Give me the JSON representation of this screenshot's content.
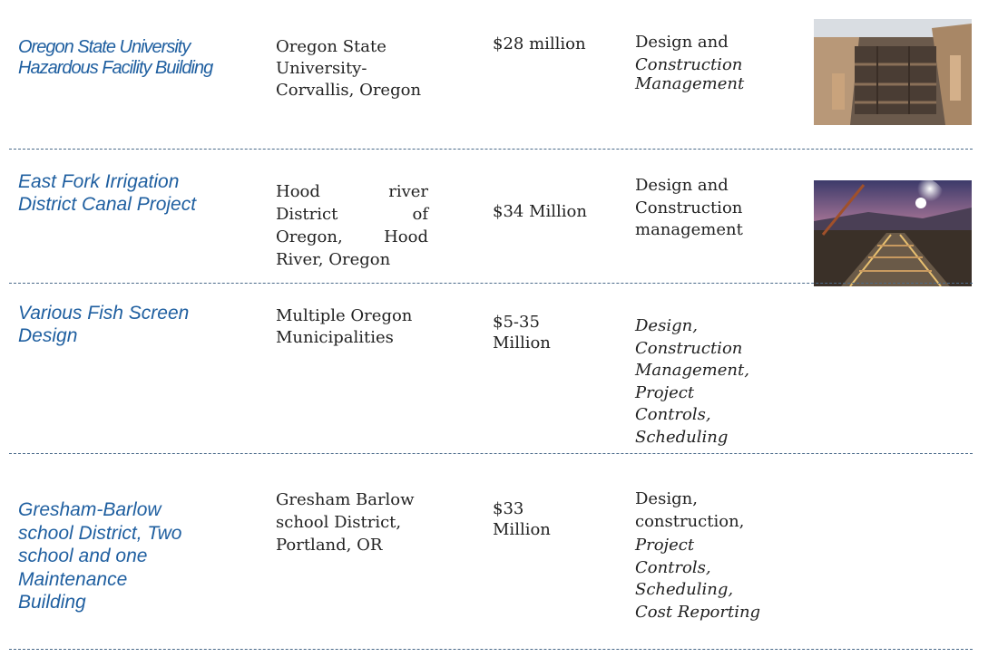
{
  "projects": [
    {
      "name": [
        "Oregon State University",
        "Hazardous Facility Building"
      ],
      "location": [
        "Oregon State",
        "University-",
        "Corvallis, Oregon"
      ],
      "cost": [
        "$28 million"
      ],
      "services_regular": [
        "Design and"
      ],
      "services_italic": [
        "Construction",
        "Management"
      ],
      "photo": "construction-site-photo"
    },
    {
      "name": [
        "East Fork Irrigation",
        "District Canal Project"
      ],
      "location": "Hood river District of Oregon, Hood River, Oregon",
      "cost": [
        "$34 Million"
      ],
      "services_regular": [
        "Design and",
        "Construction",
        "management"
      ],
      "services_italic": [],
      "photo": "canal-night-photo"
    },
    {
      "name": [
        "Various Fish Screen",
        "Design"
      ],
      "location": [
        "Multiple Oregon",
        "Municipalities"
      ],
      "cost": [
        "$5-35",
        "Million"
      ],
      "services_regular": [],
      "services_italic": [
        "Design,",
        "Construction",
        "Management,",
        "Project",
        "Controls,",
        "Scheduling"
      ]
    },
    {
      "name": [
        "Gresham-Barlow",
        "school District, Two",
        "school and one",
        "Maintenance",
        "Building"
      ],
      "location": [
        "Gresham Barlow",
        "school District,",
        "Portland, OR"
      ],
      "cost": [
        "$33",
        "Million"
      ],
      "services_regular": [
        "Design,",
        "construction,"
      ],
      "services_italic": [
        "Project",
        "Controls,",
        "Scheduling,",
        "Cost Reporting"
      ]
    }
  ]
}
